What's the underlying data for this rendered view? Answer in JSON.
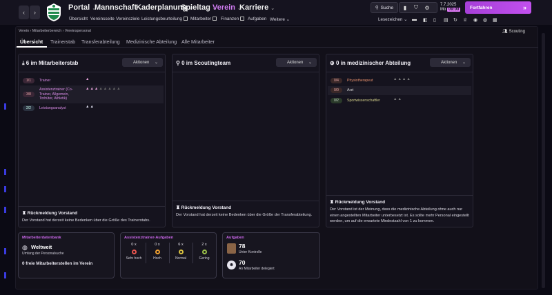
{
  "topnav": {
    "menus": [
      {
        "label": "Portal"
      },
      {
        "label": "Mannschaft"
      },
      {
        "label": "Kaderplanung"
      },
      {
        "label": "Spieltag"
      },
      {
        "label": "Verein"
      },
      {
        "label": "Karriere"
      }
    ],
    "subnav": [
      "Übersicht",
      "Vereinsseite",
      "Vereinsziele",
      "Leistungsbeurteilung",
      "Mitarbeiter",
      "Finanzen",
      "Aufgaben",
      "Weitere"
    ],
    "search_label": "Suche",
    "date": "7.7.2025",
    "weekday": "Mo",
    "time": "09:00",
    "continue_label": "Fortfahren",
    "bookmarks_label": "Lesezeichen"
  },
  "breadcrumb": [
    "Verein",
    "Mitarbeiterbereich",
    "Vereinspersonal"
  ],
  "scouting_label": "Scouting",
  "tabs": [
    {
      "label": "Übersicht"
    },
    {
      "label": "Trainerstab"
    },
    {
      "label": "Transferabteilung"
    },
    {
      "label": "Medizinische Abteilung"
    },
    {
      "label": "Alle Mitarbeiter"
    }
  ],
  "actions_label": "Aktionen",
  "cards": [
    {
      "title": "6 im Mitarbeiterstab",
      "rows": [
        {
          "badge": "1/1",
          "label": "Trainer",
          "filled": 1,
          "total": 1
        },
        {
          "badge": "3/8",
          "label": "Assistenztrainer (Co-Trainer, Allgemein, Torhüter, Athletik)",
          "filled": 3,
          "total": 8
        },
        {
          "badge": "2/2",
          "label": "Leistungsanalyst",
          "filled": 2,
          "total": 2
        }
      ],
      "feedback_title": "Rückmeldung Vorstand",
      "feedback_text": "Der Vorstand hat derzeit keine Bedenken über die Größe des Trainerstabs."
    },
    {
      "title": "0 im Scoutingteam",
      "rows": [],
      "feedback_title": "Rückmeldung Vorstand",
      "feedback_text": "Der Vorstand hat derzeit keine Bedenken über die Größe der Transferabteilung."
    },
    {
      "title": "0 in medizinischer Abteilung",
      "rows": [
        {
          "badge": "0/4",
          "label": "Physiotherapeut",
          "filled": 0,
          "total": 4
        },
        {
          "badge": "0/0",
          "label": "Arzt",
          "filled": 0,
          "total": 0
        },
        {
          "badge": "0/2",
          "label": "Sportwissenschaftler",
          "filled": 0,
          "total": 2
        }
      ],
      "feedback_title": "Rückmeldung Vorstand",
      "feedback_text": "Der Vorstand ist der Meinung, dass die medizinische Abteilung ohne auch nur einen angestellten Mitarbeiter unterbesetzt ist. Es sollte mehr Personal eingestellt werden, um auf die erwartete Mindestzahl von 1 zu kommen."
    }
  ],
  "database": {
    "title": "Mitarbeiterdatenbank",
    "scope": "Weltweit",
    "scope_label": "Umfang der Personalsuche",
    "open_positions": "0 freie Mitarbeiterstellen im Verein"
  },
  "assistant_tasks": {
    "title": "Assistenztrainer-Aufgaben",
    "items": [
      {
        "count": "0 x",
        "label": "Sehr hoch",
        "color": "#e8554f"
      },
      {
        "count": "0 x",
        "label": "Hoch",
        "color": "#f0a030"
      },
      {
        "count": "6 x",
        "label": "Normal",
        "color": "#d8c040"
      },
      {
        "count": "2 x",
        "label": "Gering",
        "color": "#9ac04a"
      }
    ]
  },
  "tasks": {
    "title": "Aufgaben",
    "control_count": "78",
    "control_label": "Unter Kontrolle",
    "delegated_count": "70",
    "delegated_label": "An Mitarbeiter delegiert"
  }
}
